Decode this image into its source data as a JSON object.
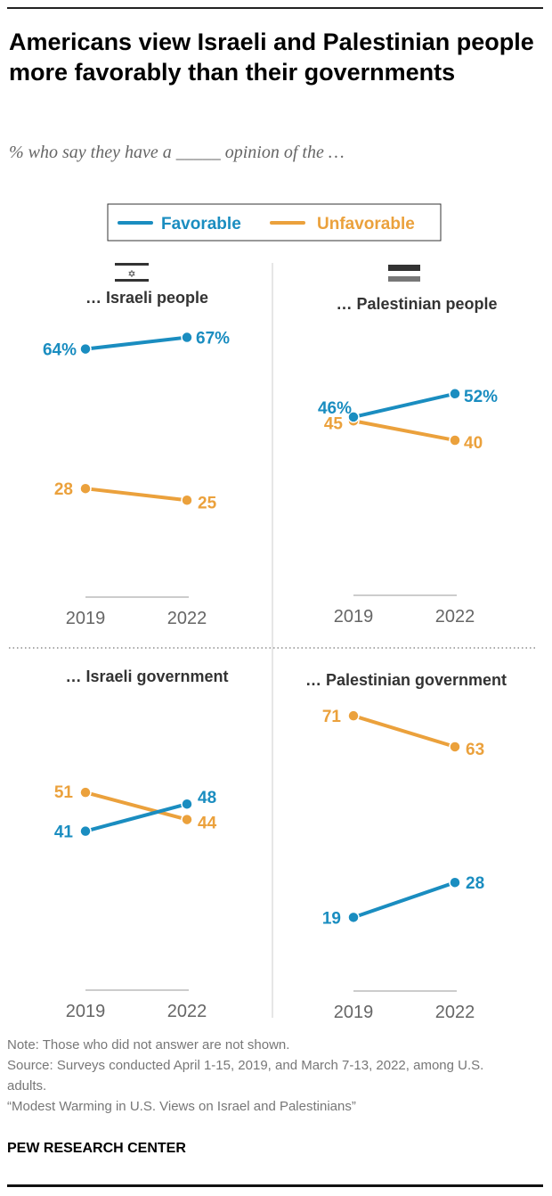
{
  "title": "Americans view Israeli and Palestinian people more favorably than their governments",
  "subtitle": "% who say they have a _____ opinion of the …",
  "notes": [
    "Note: Those who did not answer are not shown.",
    "Source: Surveys conducted April 1-15, 2019, and March 7-13, 2022, among U.S. adults.",
    "“Modest Warming in U.S. Views on Israel and Palestinians”"
  ],
  "brand": "PEW RESEARCH CENTER",
  "icons": {
    "israel": "israel-flag-icon",
    "palestine": "palestine-flag-icon"
  },
  "chart_data": {
    "type": "line",
    "legend": {
      "placement": "top-center",
      "entries": [
        "Favorable",
        "Unfavorable"
      ]
    },
    "colors": {
      "Favorable": "#1a8dc0",
      "Unfavorable": "#eba13c"
    },
    "x": [
      "2019",
      "2022"
    ],
    "ylim": [
      0,
      100
    ],
    "panels": [
      {
        "title": "… Israeli people",
        "series": [
          {
            "name": "Favorable",
            "values": [
              64,
              67
            ],
            "labels": [
              "64%",
              "67%"
            ]
          },
          {
            "name": "Unfavorable",
            "values": [
              28,
              25
            ],
            "labels": [
              "28",
              "25"
            ]
          }
        ]
      },
      {
        "title": "… Palestinian people",
        "series": [
          {
            "name": "Favorable",
            "values": [
              46,
              52
            ],
            "labels": [
              "46%",
              "52%"
            ]
          },
          {
            "name": "Unfavorable",
            "values": [
              45,
              40
            ],
            "labels": [
              "45",
              "40"
            ]
          }
        ]
      },
      {
        "title": "… Israeli government",
        "series": [
          {
            "name": "Favorable",
            "values": [
              41,
              48
            ],
            "labels": [
              "41",
              "48"
            ]
          },
          {
            "name": "Unfavorable",
            "values": [
              51,
              44
            ],
            "labels": [
              "51",
              "44"
            ]
          }
        ]
      },
      {
        "title": "… Palestinian government",
        "series": [
          {
            "name": "Favorable",
            "values": [
              19,
              28
            ],
            "labels": [
              "19",
              "28"
            ]
          },
          {
            "name": "Unfavorable",
            "values": [
              71,
              63
            ],
            "labels": [
              "71",
              "63"
            ]
          }
        ]
      }
    ]
  }
}
